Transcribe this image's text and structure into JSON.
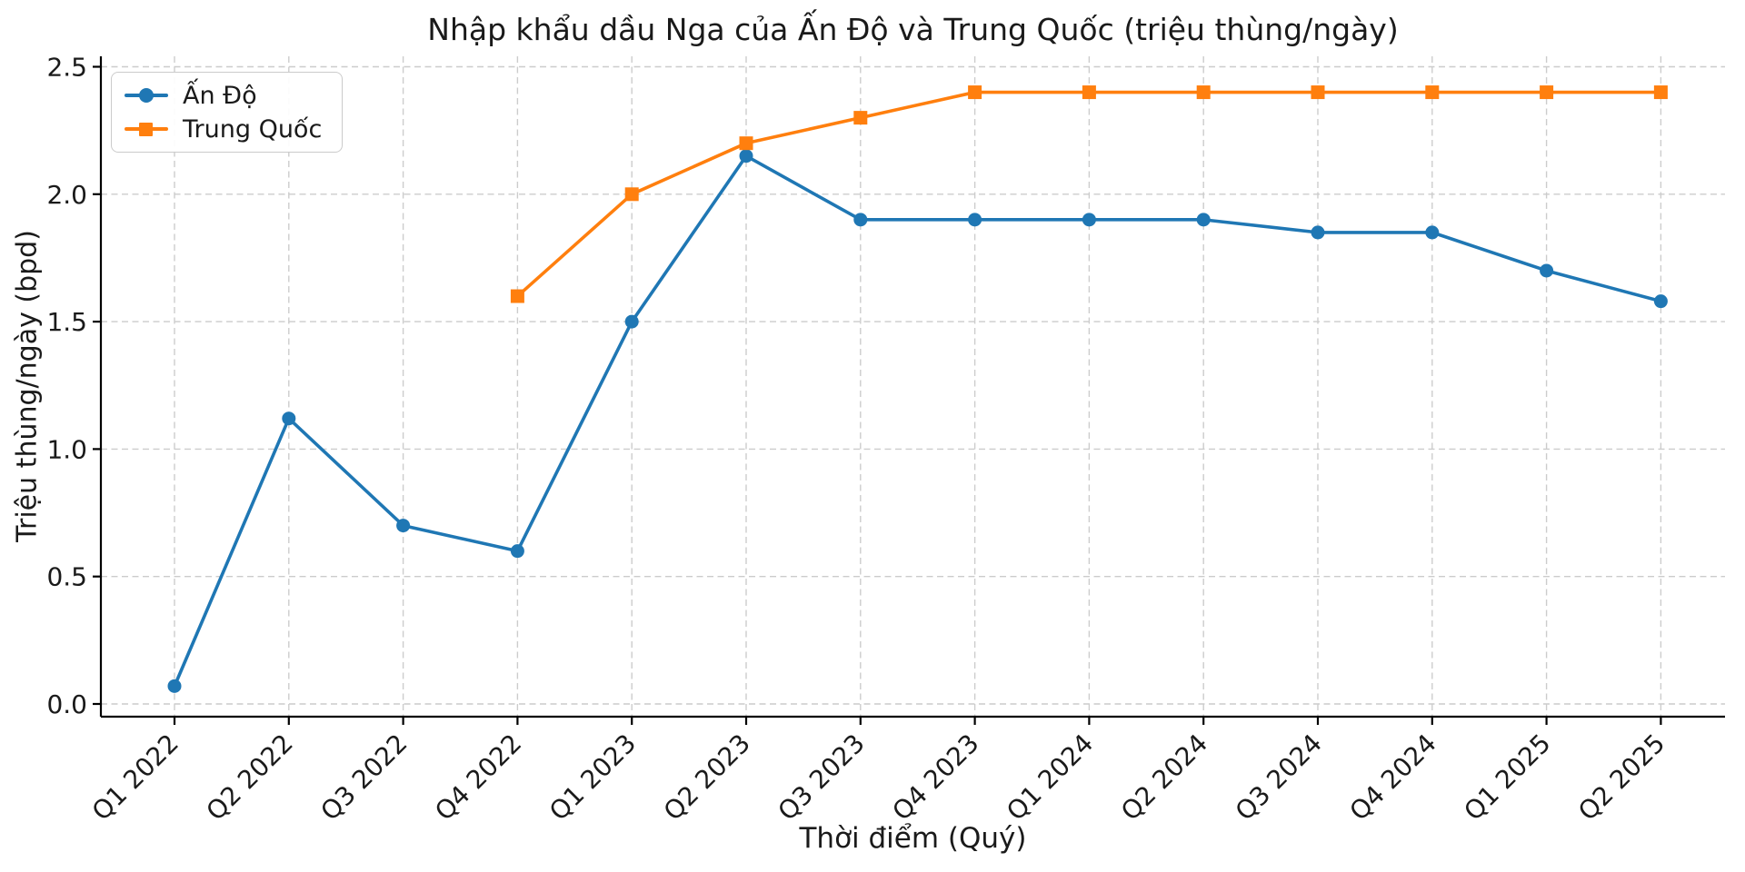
{
  "chart_data": {
    "type": "line",
    "title": "Nhập khẩu dầu Nga của Ấn Độ và Trung Quốc (triệu thùng/ngày)",
    "xlabel": "Thời điểm (Quý)",
    "ylabel": "Triệu thùng/ngày (bpd)",
    "categories": [
      "Q1 2022",
      "Q2 2022",
      "Q3 2022",
      "Q4 2022",
      "Q1 2023",
      "Q2 2023",
      "Q3 2023",
      "Q4 2023",
      "Q1 2024",
      "Q2 2024",
      "Q3 2024",
      "Q4 2024",
      "Q1 2025",
      "Q2 2025"
    ],
    "yticks": [
      0.0,
      0.5,
      1.0,
      1.5,
      2.0,
      2.5
    ],
    "ylim": [
      -0.05,
      2.55
    ],
    "grid": true,
    "grid_style": "dashed",
    "legend_position": "upper-left",
    "x_tick_rotation": 45,
    "series": [
      {
        "name": "Ấn Độ",
        "color": "#1f77b4",
        "marker": "circle",
        "values": [
          0.07,
          1.12,
          0.7,
          0.6,
          1.5,
          2.15,
          1.9,
          1.9,
          1.9,
          1.9,
          1.85,
          1.85,
          1.7,
          1.58
        ]
      },
      {
        "name": "Trung Quốc",
        "color": "#ff7f0e",
        "marker": "square",
        "values": [
          null,
          null,
          null,
          1.6,
          2.0,
          2.2,
          2.3,
          2.4,
          2.4,
          2.4,
          2.4,
          2.4,
          2.4,
          2.4
        ]
      }
    ],
    "colors": {
      "text": "#1a1a1a",
      "spine": "#000000",
      "gridline": "#cccccc",
      "background": "#ffffff"
    }
  }
}
